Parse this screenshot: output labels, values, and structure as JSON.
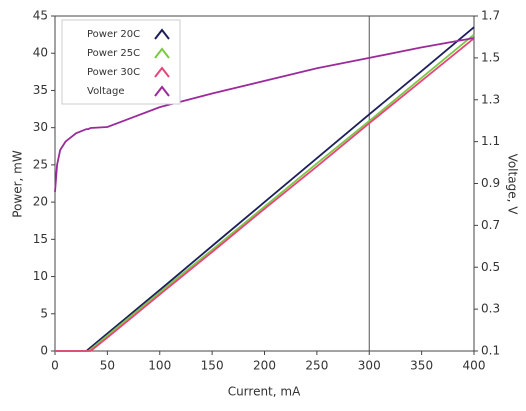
{
  "chart_data": {
    "type": "line",
    "x_label": "Current, mA",
    "y_label": "Power, mW",
    "y2_label": "Voltage, V",
    "x": [
      0,
      2,
      5,
      10,
      20,
      30,
      32,
      34,
      50,
      100,
      150,
      200,
      250,
      300,
      350,
      400
    ],
    "series": [
      {
        "name": "Power 20C",
        "color": "#1c1f5c",
        "values": [
          0,
          0,
          0,
          0,
          0,
          0,
          0.24,
          0.47,
          2.35,
          8.2,
          14.1,
          20.0,
          25.9,
          31.8,
          37.6,
          43.5
        ]
      },
      {
        "name": "Power 25C",
        "color": "#7ac943",
        "values": [
          0,
          0,
          0,
          0,
          0,
          0,
          0,
          0.23,
          2.1,
          7.9,
          13.6,
          19.4,
          25.2,
          30.9,
          36.7,
          42.5
        ]
      },
      {
        "name": "Power 30C",
        "color": "#e8457a",
        "values": [
          0,
          0,
          0,
          0,
          0,
          0,
          0,
          0,
          1.8,
          7.6,
          13.3,
          19.1,
          24.8,
          30.6,
          36.3,
          42.0
        ]
      },
      {
        "name": "Voltage",
        "color": "#9b2a9b",
        "axis": "y2",
        "values": [
          0.86,
          0.99,
          1.06,
          1.1,
          1.14,
          1.16,
          1.16,
          1.165,
          1.17,
          1.265,
          1.33,
          1.39,
          1.45,
          1.5,
          1.55,
          1.595
        ]
      }
    ],
    "cursor_x": 300,
    "xlim": [
      0,
      400
    ],
    "xticks": [
      0,
      50,
      100,
      150,
      200,
      250,
      300,
      350,
      400
    ],
    "ylim": [
      0,
      45
    ],
    "yticks": [
      0,
      5,
      10,
      15,
      20,
      25,
      30,
      35,
      40,
      45
    ],
    "y2lim": [
      0.1,
      1.7
    ],
    "y2ticks": [
      0.1,
      0.3,
      0.5,
      0.7,
      0.9,
      1.1,
      1.3,
      1.5,
      1.7
    ],
    "legend": "upper-left"
  }
}
